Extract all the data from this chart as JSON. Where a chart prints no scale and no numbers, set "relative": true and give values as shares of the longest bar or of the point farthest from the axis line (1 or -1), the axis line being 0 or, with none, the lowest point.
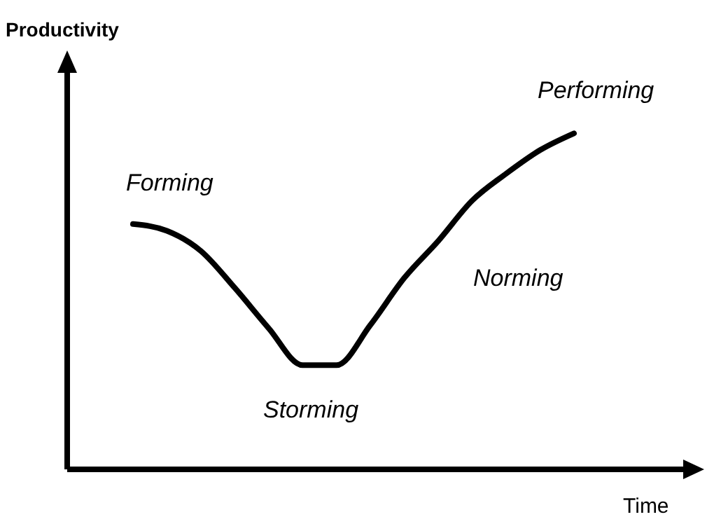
{
  "chart_data": {
    "type": "line",
    "relative": true,
    "xlabel": "Time",
    "ylabel": "Productivity",
    "annotations": [
      "Forming",
      "Storming",
      "Norming",
      "Performing"
    ],
    "categories": [
      null,
      null,
      null,
      null,
      null,
      null,
      null,
      null,
      null,
      null,
      null,
      null,
      null,
      null
    ],
    "series": [
      {
        "color": "#000000",
        "values": [
          0.73,
          0.71,
          0.65,
          0.54,
          0.42,
          0.31,
          0.31,
          0.43,
          0.57,
          0.68,
          0.8,
          0.88,
          0.95,
          1.0
        ]
      }
    ],
    "grid": false,
    "legend": false,
    "marker": "none",
    "line_style": "solid"
  }
}
